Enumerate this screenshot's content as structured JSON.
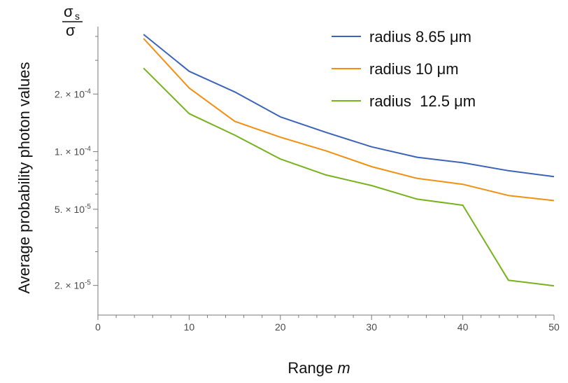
{
  "chart_data": {
    "type": "line",
    "y_scale": "log",
    "xlim": [
      0,
      50
    ],
    "ylim": [
      1.4e-05,
      0.00045
    ],
    "xticks": [
      0,
      10,
      20,
      30,
      40,
      50
    ],
    "xtick_labels": [
      "0",
      "10",
      "20",
      "30",
      "40",
      "50"
    ],
    "ytick_labels": [
      {
        "value": 0.0002,
        "mantissa": "2.",
        "exp": "-4"
      },
      {
        "value": 0.0001,
        "mantissa": "1.",
        "exp": "-4"
      },
      {
        "value": 5e-05,
        "mantissa": "5.",
        "exp": "-5"
      },
      {
        "value": 2e-05,
        "mantissa": "2.",
        "exp": "-5"
      }
    ],
    "ytick_times": "× 10",
    "xlabel_text": "Range",
    "xlabel_var": "m",
    "ylabel": "Average probability photon values",
    "ratio_label": {
      "numerator": "σ",
      "numerator_sub": "s",
      "denominator": "σ"
    },
    "legend_position": "top-right",
    "x": [
      5,
      10,
      15,
      20,
      25,
      30,
      35,
      40,
      45,
      50
    ],
    "series": [
      {
        "name": "radius 8.65 μm",
        "color": "#3b63b6",
        "values": [
          0.00041,
          0.000263,
          0.000205,
          0.000152,
          0.000126,
          0.000106,
          9.35e-05,
          8.75e-05,
          7.95e-05,
          7.4e-05
        ]
      },
      {
        "name": "radius 10 μm",
        "color": "#f28e10",
        "values": [
          0.00039,
          0.000215,
          0.000144,
          0.000119,
          0.000101,
          8.35e-05,
          7.25e-05,
          6.75e-05,
          5.9e-05,
          5.55e-05
        ]
      },
      {
        "name": "radius  12.5 μm",
        "color": "#76b21c",
        "values": [
          0.000273,
          0.000158,
          0.000122,
          9.15e-05,
          7.55e-05,
          6.65e-05,
          5.65e-05,
          5.25e-05,
          2.13e-05,
          1.99e-05
        ]
      }
    ]
  }
}
